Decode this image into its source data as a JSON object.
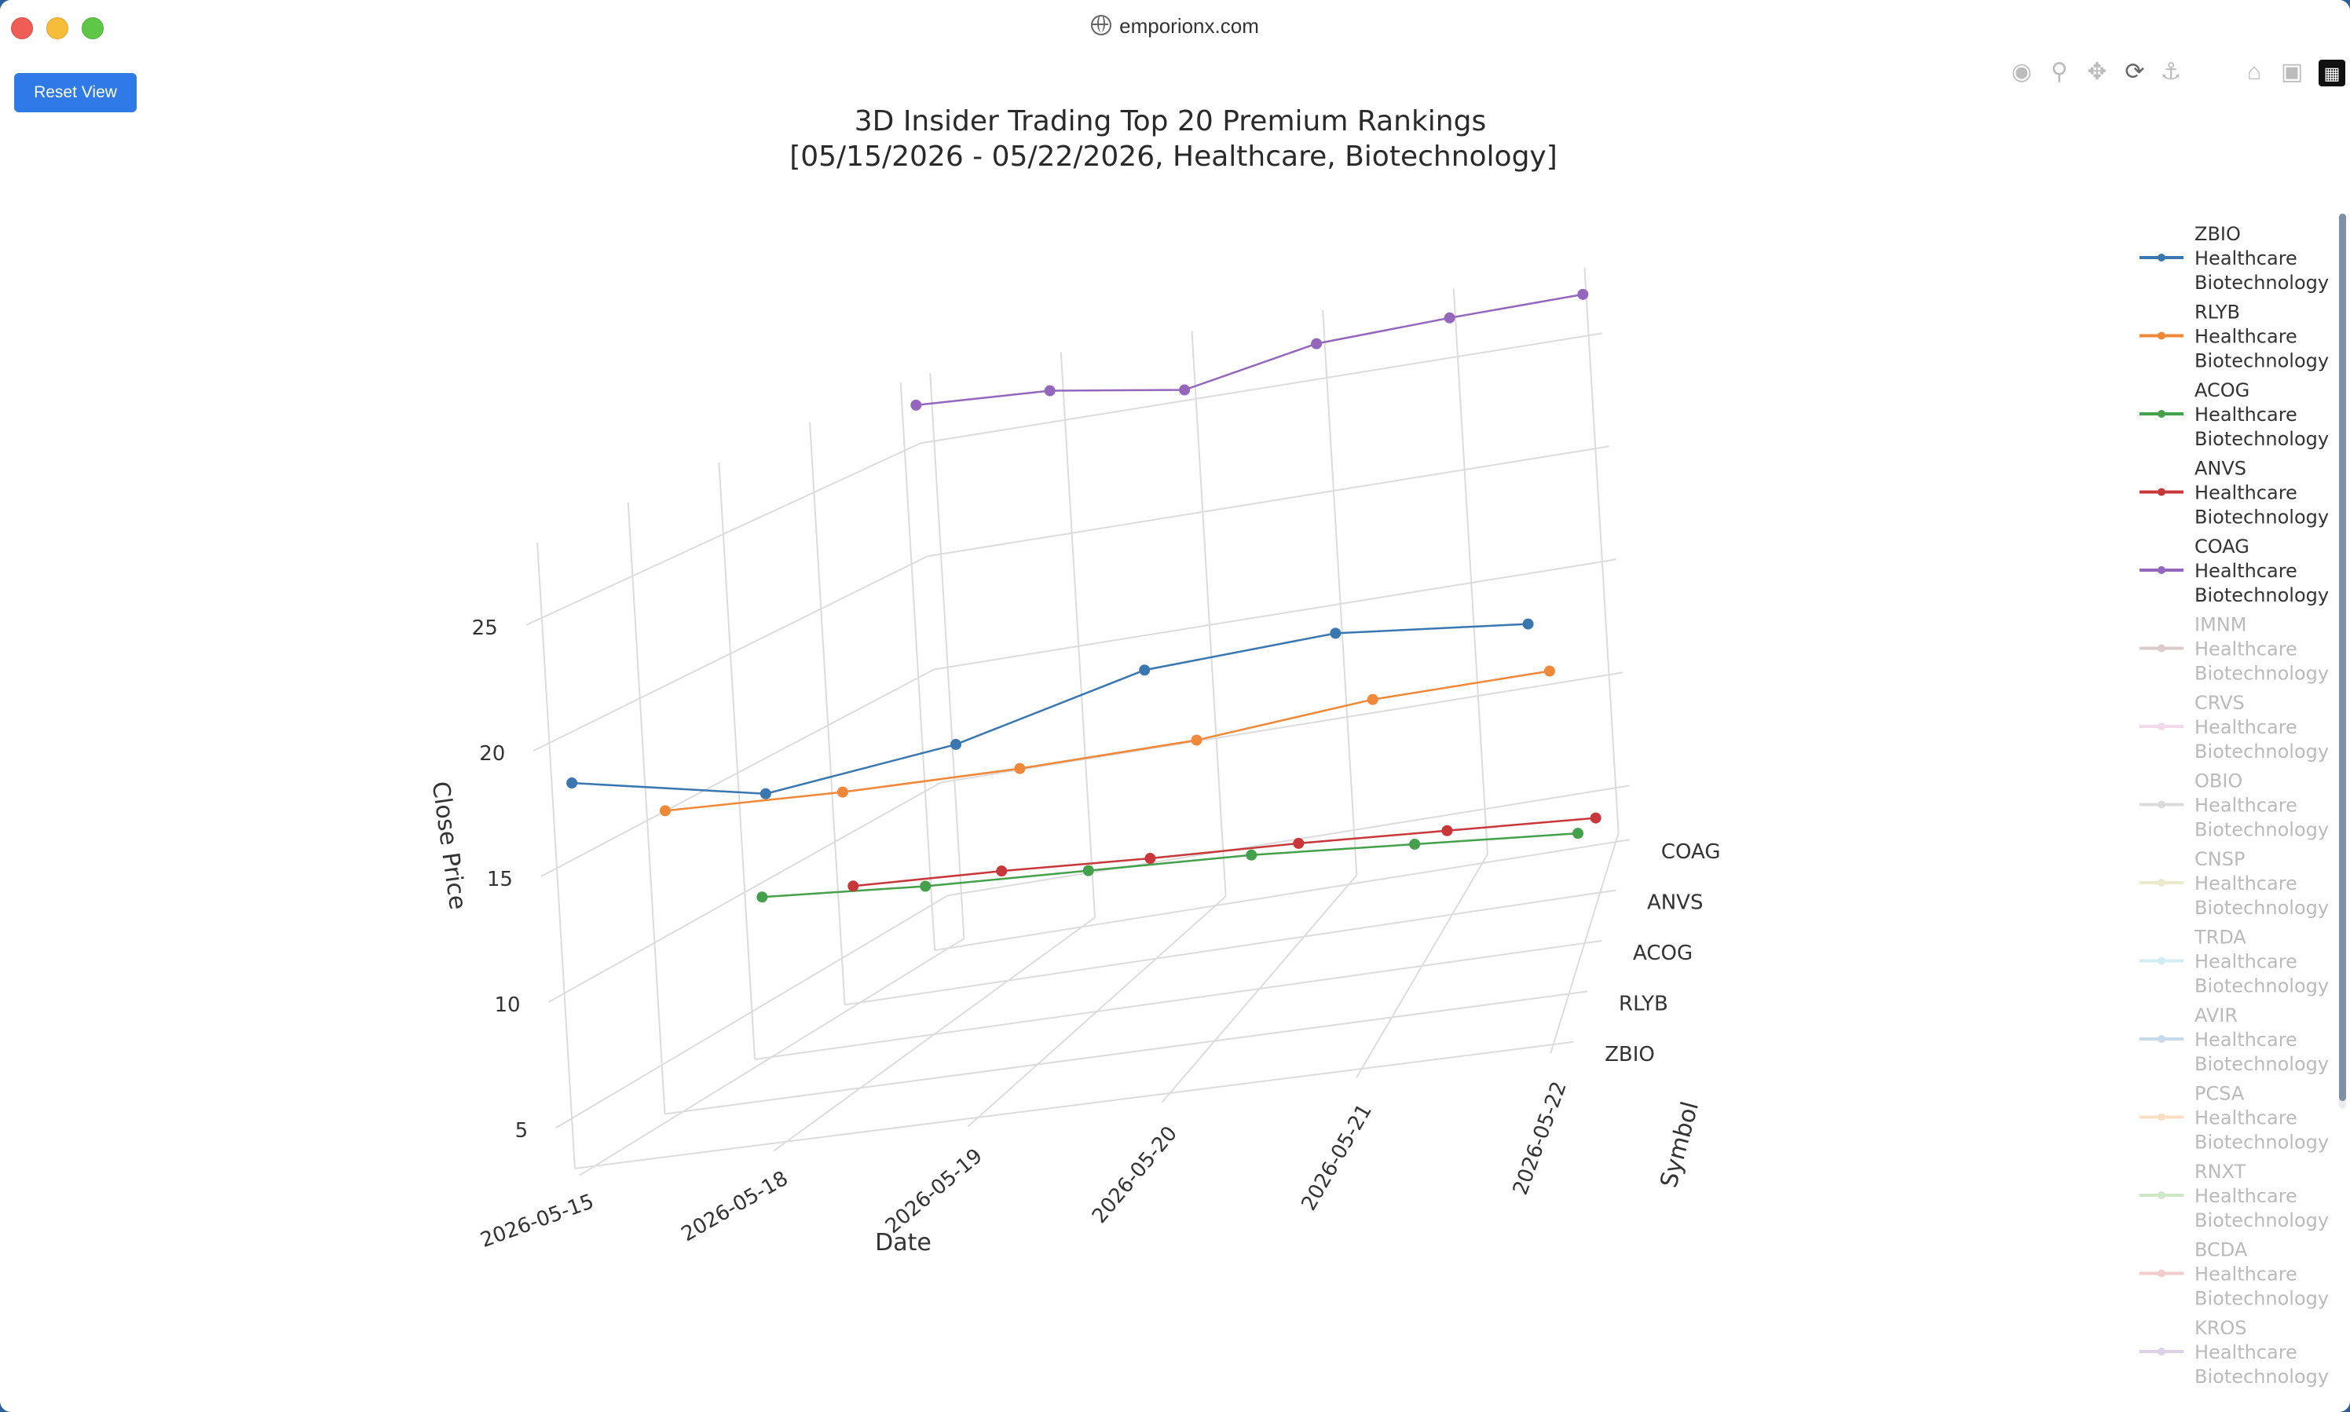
{
  "window": {
    "url": "emporionx.com"
  },
  "toolbar": {
    "reset_label": "Reset View"
  },
  "modebar": [
    "camera-icon",
    "zoom-icon",
    "pan-icon",
    "orbit-rotation-icon",
    "turntable-rotation-icon",
    "reset-camera-icon",
    "save-camera-icon",
    "plotly-logo-icon"
  ],
  "colors": {
    "ZBIO": "#3a77b0",
    "RLYB": "#f0883a",
    "ACOG": "#44a04a",
    "ANVS": "#c8373a",
    "COAG": "#9467bd",
    "IMNM": "#b69a98",
    "CRVS": "#e7b4db",
    "OBIO": "#b9b9b9",
    "CNSP": "#d7d79b",
    "TRDA": "#a5dbe9",
    "AVIR": "#8fb5d6",
    "PCSA": "#f7c08d",
    "RNXT": "#9ed08e",
    "BCDA": "#e79a9a",
    "KROS": "#bba4cf"
  },
  "chart_data": {
    "type": "line",
    "title": "3D Insider Trading Top 20 Premium Rankings",
    "subtitle": "[05/15/2026 - 05/22/2026, Healthcare, Biotechnology]",
    "xlabel": "Date",
    "ylabel": "Symbol",
    "zlabel": "Close Price",
    "dates": [
      "2026-05-15",
      "2026-05-18",
      "2026-05-19",
      "2026-05-20",
      "2026-05-21",
      "2026-05-22"
    ],
    "symbols": [
      "ZBIO",
      "RLYB",
      "ACOG",
      "ANVS",
      "COAG"
    ],
    "z_ticks": [
      5,
      10,
      15,
      20,
      25
    ],
    "zlim": [
      3,
      28
    ],
    "legend_position": "right",
    "series": [
      {
        "name": "ZBIO",
        "values": [
          18.3,
          16.9,
          17.9,
          19.9,
          20.4,
          19.8
        ]
      },
      {
        "name": "RLYB",
        "values": [
          15.3,
          15.1,
          15.1,
          15.3,
          16.0,
          16.2
        ]
      },
      {
        "name": "ACOG",
        "values": [
          9.7,
          9.2,
          8.9,
          8.6,
          8.1,
          7.6
        ]
      },
      {
        "name": "ANVS",
        "values": [
          8.0,
          7.7,
          7.3,
          7.0,
          6.6,
          6.2
        ]
      },
      {
        "name": "COAG",
        "values": [
          26.9,
          26.6,
          25.7,
          26.8,
          27.0,
          27.1
        ]
      }
    ],
    "legend": [
      {
        "symbol": "ZBIO",
        "sector": "Healthcare",
        "industry": "Biotechnology",
        "active": true
      },
      {
        "symbol": "RLYB",
        "sector": "Healthcare",
        "industry": "Biotechnology",
        "active": true
      },
      {
        "symbol": "ACOG",
        "sector": "Healthcare",
        "industry": "Biotechnology",
        "active": true
      },
      {
        "symbol": "ANVS",
        "sector": "Healthcare",
        "industry": "Biotechnology",
        "active": true
      },
      {
        "symbol": "COAG",
        "sector": "Healthcare",
        "industry": "Biotechnology",
        "active": true
      },
      {
        "symbol": "IMNM",
        "sector": "Healthcare",
        "industry": "Biotechnology",
        "active": false
      },
      {
        "symbol": "CRVS",
        "sector": "Healthcare",
        "industry": "Biotechnology",
        "active": false
      },
      {
        "symbol": "OBIO",
        "sector": "Healthcare",
        "industry": "Biotechnology",
        "active": false
      },
      {
        "symbol": "CNSP",
        "sector": "Healthcare",
        "industry": "Biotechnology",
        "active": false
      },
      {
        "symbol": "TRDA",
        "sector": "Healthcare",
        "industry": "Biotechnology",
        "active": false
      },
      {
        "symbol": "AVIR",
        "sector": "Healthcare",
        "industry": "Biotechnology",
        "active": false
      },
      {
        "symbol": "PCSA",
        "sector": "Healthcare",
        "industry": "Biotechnology",
        "active": false
      },
      {
        "symbol": "RNXT",
        "sector": "Healthcare",
        "industry": "Biotechnology",
        "active": false
      },
      {
        "symbol": "BCDA",
        "sector": "Healthcare",
        "industry": "Biotechnology",
        "active": false
      },
      {
        "symbol": "KROS",
        "sector": "Healthcare",
        "industry": "Biotechnology",
        "active": false
      }
    ]
  }
}
